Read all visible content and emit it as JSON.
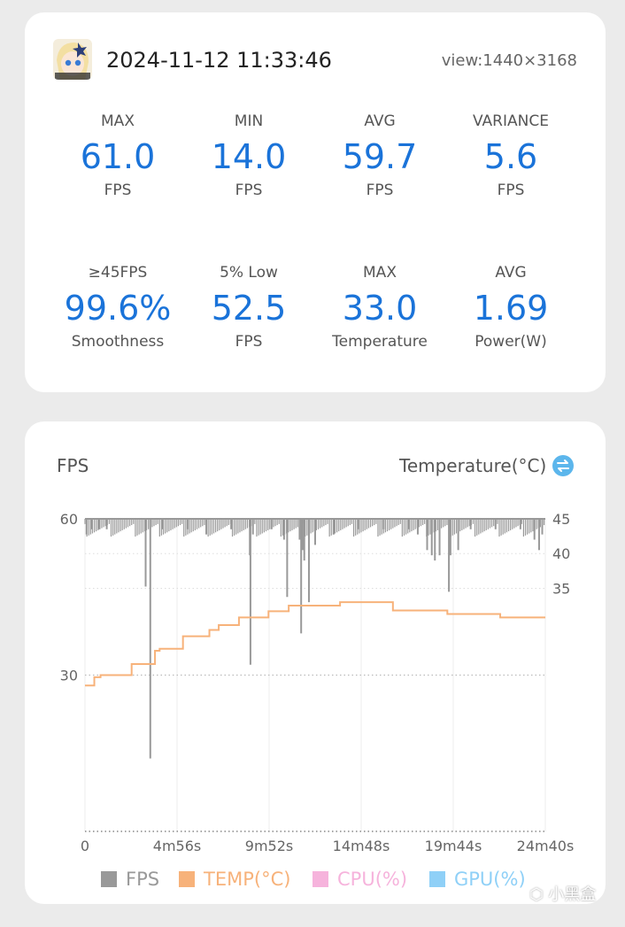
{
  "header": {
    "timestamp": "2024-11-12 11:33:46",
    "view": "view:1440×3168",
    "avatar_icon": "game-character-avatar-icon"
  },
  "stats": [
    {
      "label": "MAX",
      "value": "61.0",
      "unit": "FPS"
    },
    {
      "label": "MIN",
      "value": "14.0",
      "unit": "FPS"
    },
    {
      "label": "AVG",
      "value": "59.7",
      "unit": "FPS"
    },
    {
      "label": "VARIANCE",
      "value": "5.6",
      "unit": "FPS"
    },
    {
      "label": "≥45FPS",
      "value": "99.6%",
      "unit": "Smoothness"
    },
    {
      "label": "5% Low",
      "value": "52.5",
      "unit": "FPS"
    },
    {
      "label": "MAX",
      "value": "33.0",
      "unit": "Temperature"
    },
    {
      "label": "AVG",
      "value": "1.69",
      "unit": "Power(W)"
    }
  ],
  "colors": {
    "accent": "#1a73d9",
    "fps": "#999999",
    "temp": "#f7b27a",
    "cpu": "#f6b3dc",
    "gpu": "#8fd0f7"
  },
  "chart_data": {
    "type": "line",
    "left_axis_title": "FPS",
    "right_axis_title": "Temperature(°C)",
    "left_ticks": [
      "60",
      "30"
    ],
    "left_ylim": [
      0,
      60
    ],
    "right_ticks": [
      "45",
      "40",
      "35"
    ],
    "right_ylim": [
      0,
      45
    ],
    "x_ticks": [
      "0",
      "4m56s",
      "9m52s",
      "14m48s",
      "19m44s",
      "24m40s"
    ],
    "x_range_s": [
      0,
      1480
    ],
    "grid": true,
    "legend_position": "bottom",
    "legend": [
      {
        "name": "FPS",
        "color": "#999999"
      },
      {
        "name": "TEMP(°C)",
        "color": "#f7b27a"
      },
      {
        "name": "CPU(%)",
        "color": "#f6b3dc"
      },
      {
        "name": "GPU(%)",
        "color": "#8fd0f7"
      }
    ],
    "series": [
      {
        "name": "FPS",
        "baseline": 60,
        "dips": [
          {
            "t": 5,
            "v": 57
          },
          {
            "t": 20,
            "v": 58
          },
          {
            "t": 45,
            "v": 58
          },
          {
            "t": 70,
            "v": 58
          },
          {
            "t": 195,
            "v": 47
          },
          {
            "t": 210,
            "v": 14
          },
          {
            "t": 250,
            "v": 58
          },
          {
            "t": 330,
            "v": 58
          },
          {
            "t": 390,
            "v": 57
          },
          {
            "t": 470,
            "v": 58
          },
          {
            "t": 540,
            "v": 57
          },
          {
            "t": 530,
            "v": 53
          },
          {
            "t": 532,
            "v": 32
          },
          {
            "t": 600,
            "v": 58
          },
          {
            "t": 640,
            "v": 56
          },
          {
            "t": 650,
            "v": 45
          },
          {
            "t": 690,
            "v": 56
          },
          {
            "t": 695,
            "v": 38
          },
          {
            "t": 700,
            "v": 54
          },
          {
            "t": 705,
            "v": 52
          },
          {
            "t": 720,
            "v": 44
          },
          {
            "t": 740,
            "v": 55
          },
          {
            "t": 800,
            "v": 57
          },
          {
            "t": 880,
            "v": 58
          },
          {
            "t": 960,
            "v": 58
          },
          {
            "t": 1040,
            "v": 58
          },
          {
            "t": 1070,
            "v": 57
          },
          {
            "t": 1100,
            "v": 54
          },
          {
            "t": 1115,
            "v": 53
          },
          {
            "t": 1125,
            "v": 52
          },
          {
            "t": 1140,
            "v": 53
          },
          {
            "t": 1170,
            "v": 46
          },
          {
            "t": 1175,
            "v": 53
          },
          {
            "t": 1200,
            "v": 54
          },
          {
            "t": 1240,
            "v": 58
          },
          {
            "t": 1320,
            "v": 58
          },
          {
            "t": 1400,
            "v": 58
          },
          {
            "t": 1445,
            "v": 56
          },
          {
            "t": 1460,
            "v": 54
          },
          {
            "t": 1470,
            "v": 57
          }
        ]
      },
      {
        "name": "TEMP(°C)",
        "steps": [
          {
            "t": 0,
            "v": 21.0
          },
          {
            "t": 30,
            "v": 22.2
          },
          {
            "t": 50,
            "v": 22.5
          },
          {
            "t": 150,
            "v": 24.1
          },
          {
            "t": 225,
            "v": 26.0
          },
          {
            "t": 240,
            "v": 26.3
          },
          {
            "t": 315,
            "v": 28.1
          },
          {
            "t": 400,
            "v": 29.0
          },
          {
            "t": 430,
            "v": 29.7
          },
          {
            "t": 495,
            "v": 30.8
          },
          {
            "t": 590,
            "v": 31.7
          },
          {
            "t": 655,
            "v": 32.5
          },
          {
            "t": 820,
            "v": 33.0
          },
          {
            "t": 990,
            "v": 31.8
          },
          {
            "t": 1165,
            "v": 31.3
          },
          {
            "t": 1335,
            "v": 30.8
          },
          {
            "t": 1480,
            "v": 30.8
          }
        ]
      }
    ]
  }
}
